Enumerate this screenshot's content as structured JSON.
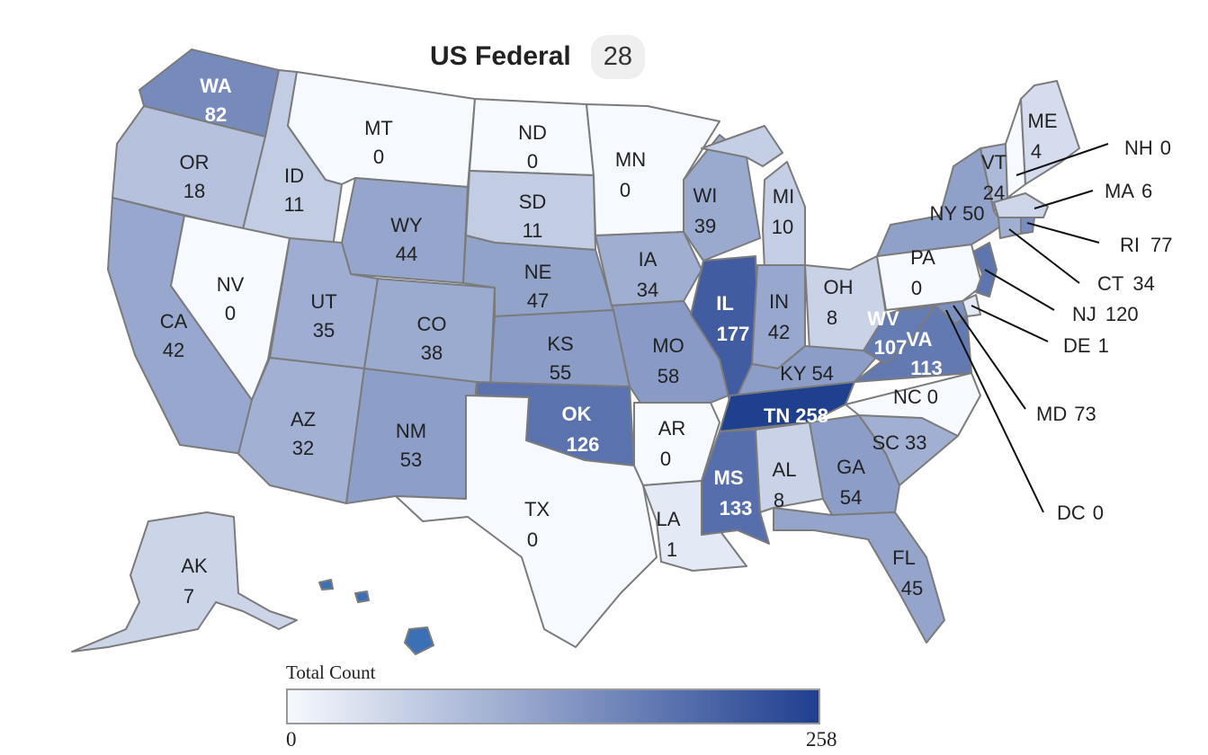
{
  "header": {
    "title": "US Federal",
    "count": "28"
  },
  "legend": {
    "title": "Total Count",
    "min": "0",
    "max": "258",
    "min_value": 0,
    "max_value": 258,
    "color_low": "#f6f9fe",
    "color_high": "#1f3f8f"
  },
  "states": {
    "WA": {
      "abbr": "WA",
      "value": "82"
    },
    "OR": {
      "abbr": "OR",
      "value": "18"
    },
    "CA": {
      "abbr": "CA",
      "value": "42"
    },
    "ID": {
      "abbr": "ID",
      "value": "11"
    },
    "NV": {
      "abbr": "NV",
      "value": "0"
    },
    "MT": {
      "abbr": "MT",
      "value": "0"
    },
    "WY": {
      "abbr": "WY",
      "value": "44"
    },
    "UT": {
      "abbr": "UT",
      "value": "35"
    },
    "AZ": {
      "abbr": "AZ",
      "value": "32"
    },
    "CO": {
      "abbr": "CO",
      "value": "38"
    },
    "NM": {
      "abbr": "NM",
      "value": "53"
    },
    "ND": {
      "abbr": "ND",
      "value": "0"
    },
    "SD": {
      "abbr": "SD",
      "value": "11"
    },
    "NE": {
      "abbr": "NE",
      "value": "47"
    },
    "KS": {
      "abbr": "KS",
      "value": "55"
    },
    "OK": {
      "abbr": "OK",
      "value": "126"
    },
    "TX": {
      "abbr": "TX",
      "value": "0"
    },
    "MN": {
      "abbr": "MN",
      "value": "0"
    },
    "IA": {
      "abbr": "IA",
      "value": "34"
    },
    "MO": {
      "abbr": "MO",
      "value": "58"
    },
    "AR": {
      "abbr": "AR",
      "value": "0"
    },
    "LA": {
      "abbr": "LA",
      "value": "1"
    },
    "WI": {
      "abbr": "WI",
      "value": "39"
    },
    "IL": {
      "abbr": "IL",
      "value": "177"
    },
    "MI": {
      "abbr": "MI",
      "value": "10"
    },
    "IN": {
      "abbr": "IN",
      "value": "42"
    },
    "OH": {
      "abbr": "OH",
      "value": "8"
    },
    "KY": {
      "abbr": "KY",
      "value": "54"
    },
    "TN": {
      "abbr": "TN",
      "value": "258"
    },
    "MS": {
      "abbr": "MS",
      "value": "133"
    },
    "AL": {
      "abbr": "AL",
      "value": "8"
    },
    "GA": {
      "abbr": "GA",
      "value": "54"
    },
    "FL": {
      "abbr": "FL",
      "value": "45"
    },
    "SC": {
      "abbr": "SC",
      "value": "33"
    },
    "NC": {
      "abbr": "NC",
      "value": "0"
    },
    "VA": {
      "abbr": "VA",
      "value": "113"
    },
    "WV": {
      "abbr": "WV",
      "value": "107"
    },
    "PA": {
      "abbr": "PA",
      "value": "0"
    },
    "NY": {
      "abbr": "NY",
      "value": "50"
    },
    "VT": {
      "abbr": "VT",
      "value": "24"
    },
    "ME": {
      "abbr": "ME",
      "value": "4"
    },
    "AK": {
      "abbr": "AK",
      "value": "7"
    },
    "HI": {
      "abbr": "HI",
      "value": ""
    }
  },
  "callouts": {
    "NH": {
      "abbr": "NH",
      "value": "0"
    },
    "MA": {
      "abbr": "MA",
      "value": "6"
    },
    "RI": {
      "abbr": "RI",
      "value": "77"
    },
    "CT": {
      "abbr": "CT",
      "value": "34"
    },
    "NJ": {
      "abbr": "NJ",
      "value": "120"
    },
    "DE": {
      "abbr": "DE",
      "value": "1"
    },
    "MD": {
      "abbr": "MD",
      "value": "73"
    },
    "DC": {
      "abbr": "DC",
      "value": "0"
    }
  }
}
